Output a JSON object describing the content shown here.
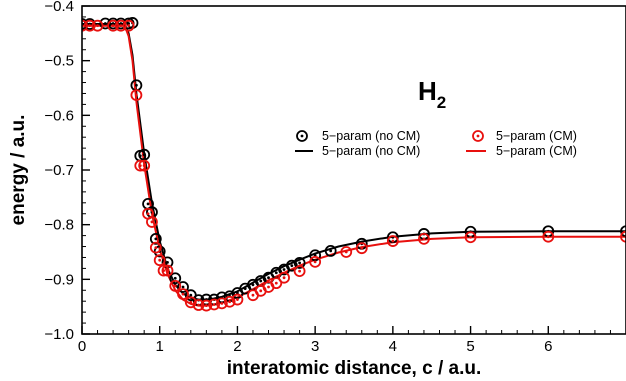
{
  "chart_data": {
    "type": "line",
    "title": "",
    "xlabel": "interatomic distance, c / a.u.",
    "ylabel": "energy / a.u.",
    "xlim": [
      0,
      7
    ],
    "ylim": [
      -1.0,
      -0.4
    ],
    "xticks": [
      "0",
      "1",
      "2",
      "3",
      "4",
      "5",
      "6"
    ],
    "yticks": [
      "−0.4",
      "−0.5",
      "−0.6",
      "−0.7",
      "−0.8",
      "−0.9",
      "−1.0"
    ],
    "annotation": {
      "main": "H",
      "subscript": "2"
    },
    "legend_position": "top-right",
    "grid": false,
    "series": [
      {
        "name": "5−param (no CM)",
        "style": "markers",
        "marker": "circle-dot",
        "color": "#000000",
        "x": [
          0.0,
          0.1,
          0.3,
          0.4,
          0.5,
          0.6,
          0.65,
          0.7,
          0.75,
          0.8,
          0.85,
          0.9,
          0.95,
          1.0,
          1.1,
          1.2,
          1.3,
          1.4,
          1.5,
          1.6,
          1.7,
          1.8,
          1.9,
          2.0,
          2.1,
          2.2,
          2.3,
          2.4,
          2.5,
          2.6,
          2.7,
          2.8,
          3.0,
          3.2,
          3.6,
          4.0,
          4.4,
          5.0,
          6.0,
          7.0
        ],
        "y": [
          -0.433,
          -0.433,
          -0.432,
          -0.432,
          -0.432,
          -0.432,
          -0.431,
          -0.545,
          -0.674,
          -0.672,
          -0.762,
          -0.777,
          -0.826,
          -0.849,
          -0.869,
          -0.898,
          -0.914,
          -0.929,
          -0.938,
          -0.937,
          -0.937,
          -0.933,
          -0.931,
          -0.925,
          -0.917,
          -0.91,
          -0.903,
          -0.897,
          -0.888,
          -0.882,
          -0.875,
          -0.87,
          -0.856,
          -0.848,
          -0.835,
          -0.823,
          -0.817,
          -0.813,
          -0.812,
          -0.812
        ]
      },
      {
        "name": "5−param (no CM)",
        "style": "line",
        "color": "#000000",
        "x": [
          0.0,
          0.2,
          0.4,
          0.55,
          0.6,
          0.65,
          0.7,
          0.8,
          0.9,
          1.0,
          1.1,
          1.2,
          1.3,
          1.4,
          1.5,
          1.6,
          1.7,
          1.8,
          2.0,
          2.2,
          2.4,
          2.6,
          2.8,
          3.0,
          3.3,
          3.6,
          4.0,
          4.5,
          5.0,
          6.0,
          7.0
        ],
        "y": [
          -0.433,
          -0.433,
          -0.433,
          -0.433,
          -0.45,
          -0.49,
          -0.56,
          -0.67,
          -0.76,
          -0.83,
          -0.88,
          -0.91,
          -0.926,
          -0.934,
          -0.937,
          -0.937,
          -0.935,
          -0.932,
          -0.922,
          -0.906,
          -0.89,
          -0.876,
          -0.864,
          -0.853,
          -0.84,
          -0.831,
          -0.822,
          -0.816,
          -0.813,
          -0.812,
          -0.812
        ]
      },
      {
        "name": "5−param (CM)",
        "style": "markers",
        "marker": "circle-dot",
        "color": "#e8100e",
        "x": [
          0.0,
          0.1,
          0.2,
          0.4,
          0.5,
          0.6,
          0.7,
          0.75,
          0.8,
          0.85,
          0.9,
          0.95,
          1.0,
          1.05,
          1.1,
          1.2,
          1.3,
          1.4,
          1.5,
          1.6,
          1.7,
          1.8,
          1.9,
          2.0,
          2.2,
          2.3,
          2.4,
          2.5,
          2.6,
          2.8,
          3.0,
          3.4,
          3.6,
          4.0,
          4.4,
          5.0,
          6.0,
          7.0
        ],
        "y": [
          -0.436,
          -0.436,
          -0.436,
          -0.436,
          -0.436,
          -0.436,
          -0.563,
          -0.692,
          -0.692,
          -0.78,
          -0.795,
          -0.842,
          -0.865,
          -0.884,
          -0.884,
          -0.912,
          -0.927,
          -0.942,
          -0.947,
          -0.948,
          -0.946,
          -0.944,
          -0.941,
          -0.937,
          -0.929,
          -0.921,
          -0.914,
          -0.907,
          -0.897,
          -0.885,
          -0.868,
          -0.85,
          -0.843,
          -0.83,
          -0.826,
          -0.823,
          -0.822,
          -0.822
        ]
      },
      {
        "name": "5−param (CM)",
        "style": "line",
        "color": "#e8100e",
        "x": [
          0.0,
          0.2,
          0.4,
          0.55,
          0.6,
          0.65,
          0.7,
          0.8,
          0.9,
          1.0,
          1.1,
          1.2,
          1.3,
          1.4,
          1.5,
          1.6,
          1.7,
          1.8,
          2.0,
          2.2,
          2.4,
          2.6,
          2.8,
          3.0,
          3.3,
          3.6,
          4.0,
          4.5,
          5.0,
          6.0,
          7.0
        ],
        "y": [
          -0.436,
          -0.436,
          -0.436,
          -0.436,
          -0.455,
          -0.5,
          -0.575,
          -0.69,
          -0.78,
          -0.845,
          -0.89,
          -0.92,
          -0.937,
          -0.945,
          -0.948,
          -0.948,
          -0.946,
          -0.943,
          -0.933,
          -0.918,
          -0.902,
          -0.888,
          -0.875,
          -0.864,
          -0.851,
          -0.841,
          -0.832,
          -0.826,
          -0.823,
          -0.822,
          -0.822
        ]
      }
    ]
  }
}
